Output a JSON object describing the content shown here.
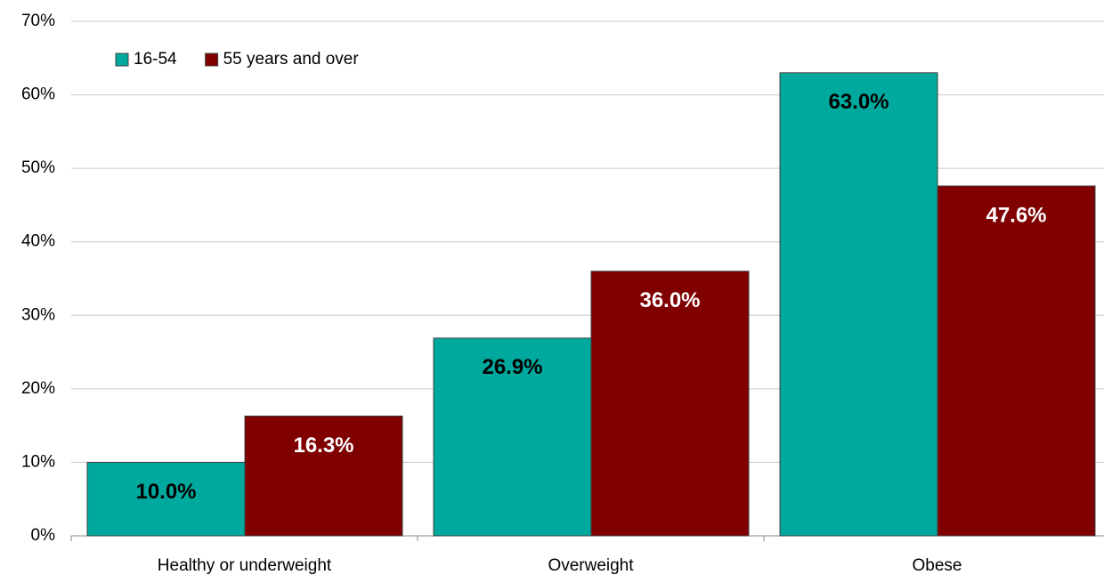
{
  "chart_data": {
    "type": "bar",
    "categories": [
      "Healthy or underweight",
      "Overweight",
      "Obese"
    ],
    "series": [
      {
        "name": "16-54",
        "color": "#00a99d",
        "label_color": "#000000",
        "values": [
          10.0,
          26.9,
          63.0
        ],
        "value_labels": [
          "10.0%",
          "26.9%",
          "63.0%"
        ]
      },
      {
        "name": "55 years and over",
        "color": "#800000",
        "label_color": "#ffffff",
        "values": [
          16.3,
          36.0,
          47.6
        ],
        "value_labels": [
          "16.3%",
          "36.0%",
          "47.6%"
        ]
      }
    ],
    "ylim": [
      0,
      70
    ],
    "yticks": [
      {
        "value": 0,
        "label": "0%"
      },
      {
        "value": 10,
        "label": "10%"
      },
      {
        "value": 20,
        "label": "20%"
      },
      {
        "value": 30,
        "label": "30%"
      },
      {
        "value": 40,
        "label": "40%"
      },
      {
        "value": 50,
        "label": "50%"
      },
      {
        "value": 60,
        "label": "60%"
      },
      {
        "value": 70,
        "label": "70%"
      }
    ],
    "grid": true,
    "legend": "top-left"
  }
}
